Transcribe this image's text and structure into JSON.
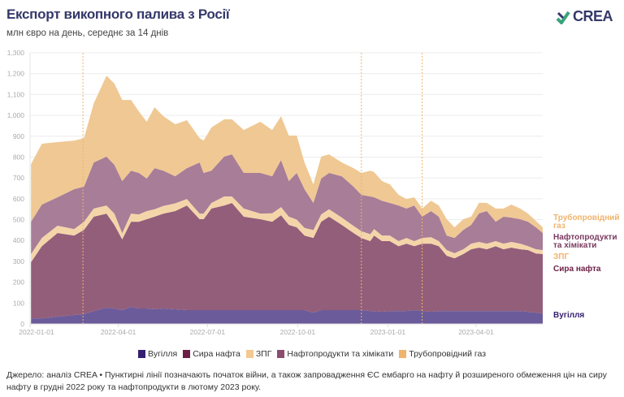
{
  "header": {
    "title": "Експорт викопного палива з Росії",
    "subtitle": "млн євро на день, середнє за 14 днів",
    "logo_text": "CREA"
  },
  "chart_data": {
    "type": "area",
    "stacked": true,
    "title": "Експорт викопного палива з Росії",
    "ylabel": "млн євро на день",
    "ylim": [
      0,
      1300
    ],
    "yticks": [
      0,
      100,
      200,
      300,
      400,
      500,
      600,
      700,
      800,
      900,
      1000,
      1100,
      1200,
      1300
    ],
    "ytick_labels": [
      "0",
      "100",
      "200",
      "300",
      "400",
      "500",
      "600",
      "700",
      "800",
      "900",
      "1,000",
      "1,100",
      "1,200",
      "1,300"
    ],
    "xlim": [
      "2022-01-01",
      "2023-06-08"
    ],
    "xticks": [
      "2022-01-01",
      "2022-04-01",
      "2022-07-01",
      "2022-10-01",
      "2023-01-01",
      "2023-04-01"
    ],
    "grid": true,
    "legend_position": "bottom",
    "x": [
      "2022-01-02",
      "2022-01-13",
      "2022-01-29",
      "2022-02-15",
      "2022-02-25",
      "2022-03-07",
      "2022-03-20",
      "2022-03-28",
      "2022-04-05",
      "2022-04-14",
      "2022-04-22",
      "2022-04-30",
      "2022-05-08",
      "2022-05-17",
      "2022-05-29",
      "2022-06-10",
      "2022-06-23",
      "2022-06-27",
      "2022-07-05",
      "2022-07-18",
      "2022-07-26",
      "2022-08-07",
      "2022-08-24",
      "2022-09-05",
      "2022-09-14",
      "2022-09-22",
      "2022-09-30",
      "2022-10-08",
      "2022-10-17",
      "2022-10-25",
      "2022-11-02",
      "2022-11-15",
      "2022-11-27",
      "2022-12-05",
      "2022-12-14",
      "2022-12-18",
      "2022-12-26",
      "2023-01-03",
      "2023-01-12",
      "2023-01-20",
      "2023-01-28",
      "2023-02-05",
      "2023-02-14",
      "2023-02-22",
      "2023-03-02",
      "2023-03-10",
      "2023-03-19",
      "2023-03-27",
      "2023-04-04",
      "2023-04-12",
      "2023-04-21",
      "2023-04-29",
      "2023-05-07",
      "2023-05-16",
      "2023-05-24",
      "2023-06-01",
      "2023-06-08"
    ],
    "series": [
      {
        "name": "Вугілля",
        "label": "Вугілля",
        "color": "#6b5b9a",
        "legend_color": "#35206f",
        "label_color": "#35206f",
        "values": [
          27,
          27,
          35,
          43,
          47,
          62,
          78,
          74,
          66,
          82,
          74,
          74,
          70,
          74,
          70,
          66,
          66,
          66,
          66,
          66,
          66,
          66,
          66,
          66,
          66,
          66,
          66,
          66,
          54,
          66,
          66,
          66,
          66,
          66,
          62,
          62,
          58,
          62,
          62,
          62,
          66,
          62,
          58,
          62,
          62,
          62,
          62,
          62,
          62,
          62,
          62,
          62,
          62,
          62,
          58,
          54,
          50
        ]
      },
      {
        "name": "Сира нафта",
        "label": "Сира нафта",
        "color": "#935e7a",
        "legend_color": "#6b1f45",
        "label_color": "#6b1f45",
        "values": [
          269,
          346,
          401,
          381,
          404,
          452,
          451,
          401,
          339,
          408,
          416,
          428,
          444,
          455,
          471,
          502,
          436,
          436,
          487,
          502,
          514,
          448,
          436,
          424,
          455,
          409,
          397,
          358,
          358,
          424,
          448,
          409,
          370,
          346,
          335,
          362,
          339,
          335,
          311,
          323,
          307,
          323,
          327,
          311,
          265,
          253,
          273,
          296,
          304,
          296,
          311,
          296,
          304,
          296,
          296,
          284,
          285
        ]
      },
      {
        "name": "ЗПГ",
        "label": "ЗПГ",
        "color": "#f4d5a9",
        "legend_color": "#f3c98f",
        "label_color": "#f0b36c",
        "values": [
          39,
          39,
          35,
          31,
          39,
          39,
          39,
          54,
          30,
          39,
          35,
          39,
          36,
          37,
          37,
          31,
          27,
          27,
          27,
          43,
          31,
          39,
          27,
          40,
          39,
          39,
          37,
          36,
          38,
          35,
          36,
          35,
          34,
          33,
          33,
          31,
          27,
          27,
          24,
          27,
          24,
          27,
          31,
          24,
          27,
          24,
          23,
          27,
          27,
          27,
          24,
          27,
          27,
          27,
          19,
          20,
          19
        ]
      },
      {
        "name": "Нафтопродукти та хімікати",
        "label": "Нафтопродукти та хімікати",
        "color": "#a87d97",
        "legend_color": "#8c4c6e",
        "label_color": "#7a3a5e",
        "values": [
          155,
          160,
          136,
          191,
          168,
          221,
          234,
          234,
          250,
          206,
          199,
          156,
          197,
          169,
          130,
          148,
          245,
          195,
          155,
          191,
          202,
          171,
          195,
          178,
          226,
          171,
          224,
          186,
          130,
          172,
          174,
          198,
          188,
          174,
          181,
          152,
          167,
          156,
          171,
          141,
          171,
          102,
          125,
          117,
          70,
          73,
          93,
          90,
          137,
          156,
          93,
          129,
          117,
          117,
          117,
          105,
          82
        ]
      },
      {
        "name": "Трубопровідний газ",
        "label": "Трубопровідний газ",
        "color": "#efc894",
        "legend_color": "#f0b36c",
        "label_color": "#f0b36c",
        "values": [
          276,
          292,
          265,
          233,
          233,
          284,
          388,
          389,
          389,
          339,
          295,
          272,
          292,
          261,
          249,
          230,
          117,
          155,
          207,
          179,
          168,
          206,
          245,
          222,
          210,
          218,
          179,
          128,
          89,
          105,
          89,
          66,
          89,
          105,
          124,
          121,
          94,
          89,
          51,
          46,
          39,
          39,
          50,
          54,
          78,
          51,
          51,
          39,
          51,
          39,
          63,
          39,
          62,
          51,
          39,
          31,
          27
        ]
      }
    ],
    "annotations": [
      {
        "date": "2022-02-24",
        "style": "dotted",
        "color": "#f0b36c"
      },
      {
        "date": "2022-12-05",
        "style": "dotted",
        "color": "#f0b36c"
      },
      {
        "date": "2023-02-05",
        "style": "dotted",
        "color": "#f0b36c"
      }
    ]
  },
  "side_labels": {
    "gas": "Трубопровідний газ",
    "products": "Нафтопродукти та хімікати",
    "lng": "ЗПГ",
    "crude": "Сира нафта",
    "coal": "Вугілля"
  },
  "footer": "Джерело: аналіз CREA • Пунктирні лінії позначають початок війни, а також запровадження ЄС ембарго на нафту й розширеного обмеження цін на сиру нафту в грудні 2022 року та нафтопродукти в лютому 2023 року."
}
